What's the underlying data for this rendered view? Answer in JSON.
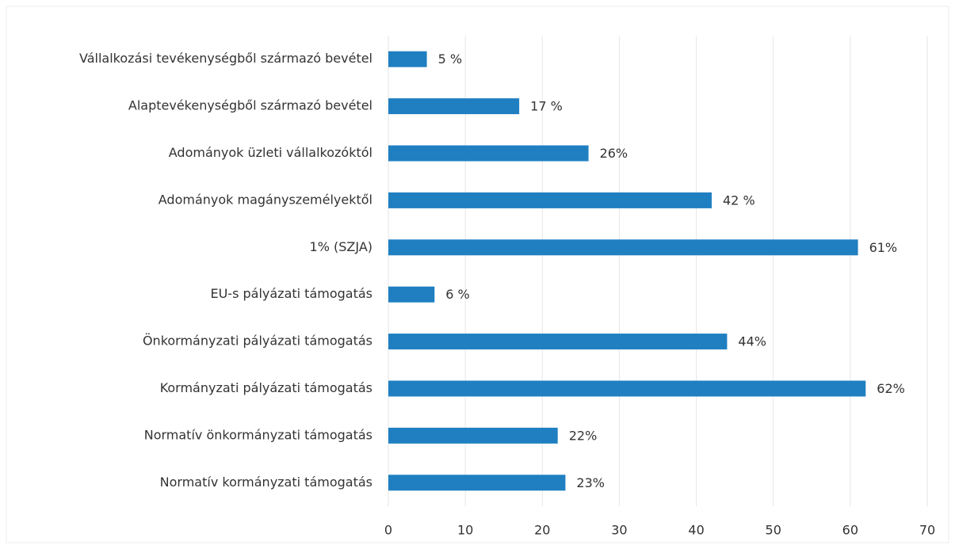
{
  "chart_data": {
    "type": "bar",
    "orientation": "horizontal",
    "categories": [
      "Vállalkozási tevékenységből származó bevétel",
      "Alaptevékenységből származó bevétel",
      "Adományok üzleti vállalkozóktól",
      "Adományok magányszemélyektől",
      "1% (SZJA)",
      "EU-s pályázati támogatás",
      "Önkormányzati pályázati támogatás",
      "Kormányzati pályázati támogatás",
      "Normatív önkormányzati támogatás",
      "Normatív kormányzati támogatás"
    ],
    "values": [
      5,
      17,
      26,
      42,
      61,
      6,
      44,
      62,
      22,
      23
    ],
    "value_labels": [
      "5 %",
      "17 %",
      "26%",
      "42 %",
      "61%",
      "6 %",
      "44%",
      "62%",
      "22%",
      "23%"
    ],
    "color": "#1f7fc1",
    "xlim": [
      0,
      70
    ],
    "xticks": [
      0,
      10,
      20,
      30,
      40,
      50,
      60,
      70
    ],
    "grid": true
  }
}
